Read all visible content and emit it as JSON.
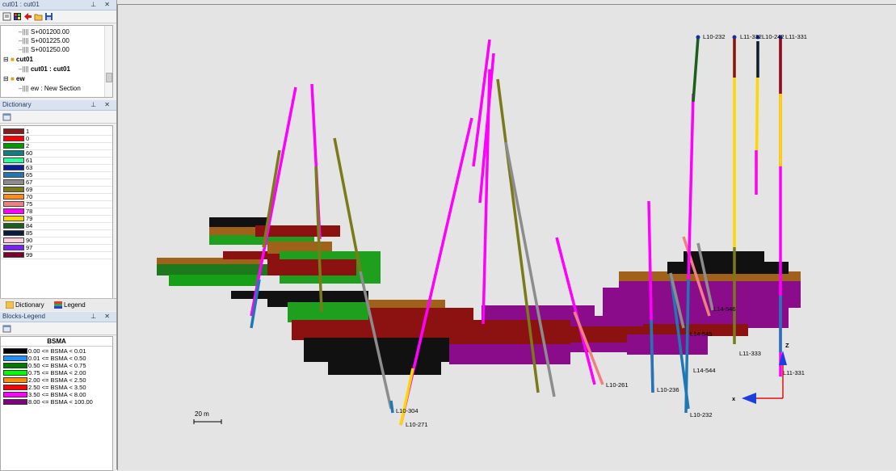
{
  "section_panel": {
    "title": "cut01 : cut01",
    "tree": [
      {
        "label": "S+001200.00",
        "bold": false
      },
      {
        "label": "S+001225.00",
        "bold": false
      },
      {
        "label": "S+001250.00",
        "bold": false
      },
      {
        "label": "cut01",
        "bold": true
      },
      {
        "label": "cut01 : cut01",
        "bold": true
      },
      {
        "label": "ew",
        "bold": true
      },
      {
        "label": "ew : New Section",
        "bold": false
      }
    ]
  },
  "dictionary_panel": {
    "title": "Dictionary",
    "items": [
      {
        "label": "1",
        "color": "#8b1a1a"
      },
      {
        "label": "0",
        "color": "#ff0000"
      },
      {
        "label": "2",
        "color": "#009a00"
      },
      {
        "label": "60",
        "color": "#0f7f7f"
      },
      {
        "label": "61",
        "color": "#2bff9a"
      },
      {
        "label": "63",
        "color": "#0a1e9a"
      },
      {
        "label": "65",
        "color": "#1f78b4"
      },
      {
        "label": "67",
        "color": "#8c8c8c"
      },
      {
        "label": "69",
        "color": "#7a7a18"
      },
      {
        "label": "70",
        "color": "#ff8c1a"
      },
      {
        "label": "75",
        "color": "#f08080"
      },
      {
        "label": "78",
        "color": "#ff00ff"
      },
      {
        "label": "79",
        "color": "#ffd700"
      },
      {
        "label": "84",
        "color": "#1c5e1c"
      },
      {
        "label": "85",
        "color": "#0d1a3d"
      },
      {
        "label": "90",
        "color": "#ffcce0"
      },
      {
        "label": "97",
        "color": "#7b1fff"
      },
      {
        "label": "99",
        "color": "#7a0030"
      }
    ],
    "tabs": [
      "Dictionary",
      "Legend"
    ]
  },
  "blocks_legend_panel": {
    "title": "Blocks-Legend",
    "header": "BSMA",
    "items": [
      {
        "label": "0.00 <= BSMA < 0.01",
        "color": "#000000"
      },
      {
        "label": "0.01 <= BSMA < 0.50",
        "color": "#1e90ff"
      },
      {
        "label": "0.50 <= BSMA < 0.75",
        "color": "#007a00"
      },
      {
        "label": "0.75 <= BSMA < 2.00",
        "color": "#00ff00"
      },
      {
        "label": "2.00 <= BSMA < 2.50",
        "color": "#ff8c00"
      },
      {
        "label": "2.50 <= BSMA < 3.50",
        "color": "#ff0000"
      },
      {
        "label": "3.50 <= BSMA < 8.00",
        "color": "#ff00ff"
      },
      {
        "label": "8.00 <= BSMA < 100.00",
        "color": "#800080"
      }
    ]
  },
  "viewport": {
    "scale_bar_label": "20 m",
    "axis_labels": {
      "x": "x",
      "z": "Z"
    },
    "hole_labels": [
      "L10-232",
      "L11-332",
      "L10-242",
      "L11-331",
      "L11-333",
      "L11-331",
      "L14-545",
      "L14-544",
      "L14-546",
      "L10-236",
      "L10-232",
      "L10-261",
      "L10-304",
      "L10-271"
    ]
  }
}
